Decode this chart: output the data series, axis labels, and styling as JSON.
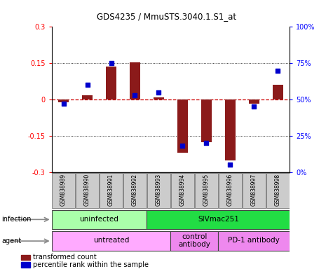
{
  "title": "GDS4235 / MmuSTS.3040.1.S1_at",
  "samples": [
    "GSM838989",
    "GSM838990",
    "GSM838991",
    "GSM838992",
    "GSM838993",
    "GSM838994",
    "GSM838995",
    "GSM838996",
    "GSM838997",
    "GSM838998"
  ],
  "red_bars": [
    -0.012,
    0.018,
    0.135,
    0.155,
    0.01,
    -0.22,
    -0.175,
    -0.252,
    -0.018,
    0.06
  ],
  "blue_dots_pct": [
    47,
    60,
    75,
    53,
    55,
    18,
    20,
    5,
    45,
    70
  ],
  "ylim": [
    -0.3,
    0.3
  ],
  "y_left_ticks": [
    -0.3,
    -0.15,
    0.0,
    0.15,
    0.3
  ],
  "y_left_labels": [
    "-0.3",
    "-0.15",
    "0",
    "0.15",
    "0.3"
  ],
  "y_right_ticks": [
    -0.3,
    -0.15,
    0.0,
    0.15,
    0.3
  ],
  "y_right_labels": [
    "0%",
    "25%",
    "50%",
    "75%",
    "100%"
  ],
  "bar_color": "#8B1A1A",
  "dot_color": "#0000CC",
  "hline_color": "#CC0000",
  "infection_groups": [
    {
      "label": "uninfected",
      "start": 0,
      "end": 3,
      "color": "#AAFFAA"
    },
    {
      "label": "SIVmac251",
      "start": 4,
      "end": 9,
      "color": "#22DD44"
    }
  ],
  "agent_groups": [
    {
      "label": "untreated",
      "start": 0,
      "end": 4,
      "color": "#FFAAFF"
    },
    {
      "label": "control\nantibody",
      "start": 5,
      "end": 6,
      "color": "#EE88EE"
    },
    {
      "label": "PD-1 antibody",
      "start": 7,
      "end": 9,
      "color": "#EE88EE"
    }
  ],
  "legend_items": [
    {
      "color": "#8B1A1A",
      "label": "transformed count"
    },
    {
      "color": "#0000CC",
      "label": "percentile rank within the sample"
    }
  ],
  "sample_box_color": "#CCCCCC",
  "row_label_infection": "infection",
  "row_label_agent": "agent"
}
